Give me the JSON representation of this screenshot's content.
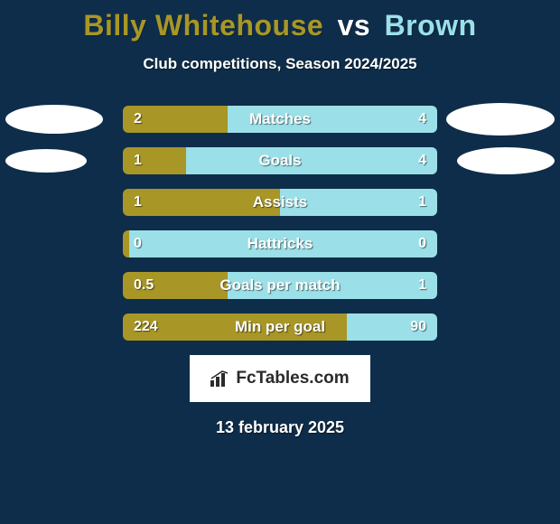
{
  "background_color": "#0e2d4a",
  "title": {
    "player1": "Billy Whitehouse",
    "vs": "vs",
    "player2": "Brown",
    "player1_color": "#a89626",
    "vs_color": "#ffffff",
    "player2_color": "#9be0e8"
  },
  "subtitle": "Club competitions, Season 2024/2025",
  "left_color": "#a89626",
  "right_color": "#9be0e8",
  "oval_sizes": {
    "row0": {
      "left_w": 108,
      "left_h": 32,
      "right_w": 120,
      "right_h": 36
    },
    "row1": {
      "left_w": 90,
      "left_h": 26,
      "right_w": 108,
      "right_h": 30
    }
  },
  "stats": [
    {
      "label": "Matches",
      "left_val": "2",
      "right_val": "4",
      "left_pct": 33.3
    },
    {
      "label": "Goals",
      "left_val": "1",
      "right_val": "4",
      "left_pct": 20.0
    },
    {
      "label": "Assists",
      "left_val": "1",
      "right_val": "1",
      "left_pct": 50.0
    },
    {
      "label": "Hattricks",
      "left_val": "0",
      "right_val": "0",
      "left_pct": 2.0
    },
    {
      "label": "Goals per match",
      "left_val": "0.5",
      "right_val": "1",
      "left_pct": 33.3
    },
    {
      "label": "Min per goal",
      "left_val": "224",
      "right_val": "90",
      "left_pct": 71.3
    }
  ],
  "logo_text": "FcTables.com",
  "date": "13 february 2025"
}
